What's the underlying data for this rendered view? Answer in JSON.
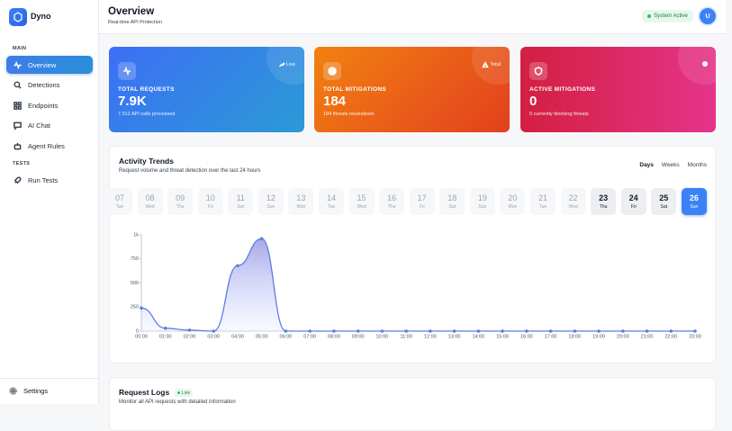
{
  "sidebar": {
    "brand": "Dyno",
    "sections": [
      {
        "title": "MAIN",
        "items": [
          "Overview",
          "Detections",
          "Endpoints",
          "AI Chat",
          "Agent Rules"
        ]
      },
      {
        "title": "TESTS",
        "items": [
          "Run Tests"
        ]
      }
    ],
    "settings": "Settings"
  },
  "header": {
    "title": "Overview",
    "subtitle": "Real-time API Protection",
    "status": "System Active",
    "avatar": "U"
  },
  "cards": [
    {
      "label": "TOTAL REQUESTS",
      "value": "7.9K",
      "caption": "7,912 API calls processed",
      "badge": "Live"
    },
    {
      "label": "TOTAL MITIGATIONS",
      "value": "184",
      "caption": "184 threats neutralized",
      "badge": "Total"
    },
    {
      "label": "ACTIVE MITIGATIONS",
      "value": "0",
      "caption": "0 currently blocking threats"
    }
  ],
  "activity": {
    "title": "Activity Trends",
    "subtitle": "Request volume and threat detection over the last 24 hours",
    "ranges": [
      "Days",
      "Weeks",
      "Months"
    ],
    "dates": [
      {
        "day": "07",
        "weekday": "Tue"
      },
      {
        "day": "08",
        "weekday": "Wed"
      },
      {
        "day": "09",
        "weekday": "Thu"
      },
      {
        "day": "10",
        "weekday": "Fri"
      },
      {
        "day": "11",
        "weekday": "Sat"
      },
      {
        "day": "12",
        "weekday": "Sun"
      },
      {
        "day": "13",
        "weekday": "Mon"
      },
      {
        "day": "14",
        "weekday": "Tue"
      },
      {
        "day": "15",
        "weekday": "Wed"
      },
      {
        "day": "16",
        "weekday": "Thu"
      },
      {
        "day": "17",
        "weekday": "Fri"
      },
      {
        "day": "18",
        "weekday": "Sat"
      },
      {
        "day": "19",
        "weekday": "Sun"
      },
      {
        "day": "20",
        "weekday": "Mon"
      },
      {
        "day": "21",
        "weekday": "Tue"
      },
      {
        "day": "22",
        "weekday": "Wed"
      },
      {
        "day": "23",
        "weekday": "Thu"
      },
      {
        "day": "24",
        "weekday": "Fri"
      },
      {
        "day": "25",
        "weekday": "Sat"
      },
      {
        "day": "26",
        "weekday": "Sun"
      }
    ]
  },
  "chart_data": {
    "type": "area",
    "categories": [
      "00:00",
      "01:00",
      "02:00",
      "03:00",
      "04:00",
      "05:00",
      "06:00",
      "07:00",
      "08:00",
      "09:00",
      "10:00",
      "11:00",
      "12:00",
      "13:00",
      "14:00",
      "15:00",
      "16:00",
      "17:00",
      "18:00",
      "19:00",
      "20:00",
      "21:00",
      "22:00",
      "23:00"
    ],
    "values": [
      240,
      30,
      10,
      0,
      680,
      960,
      0,
      0,
      0,
      0,
      0,
      0,
      0,
      0,
      0,
      0,
      0,
      0,
      0,
      0,
      0,
      0,
      0,
      0
    ],
    "color": "#5b7fe0",
    "ylim": [
      0,
      1000
    ],
    "yticks": [
      0,
      250,
      500,
      750,
      {
        "value": 1000,
        "label": "1k"
      }
    ],
    "grid": false
  },
  "logs": {
    "title": "Request Logs",
    "badge": "Live",
    "subtitle": "Monitor all API requests with detailed information"
  }
}
